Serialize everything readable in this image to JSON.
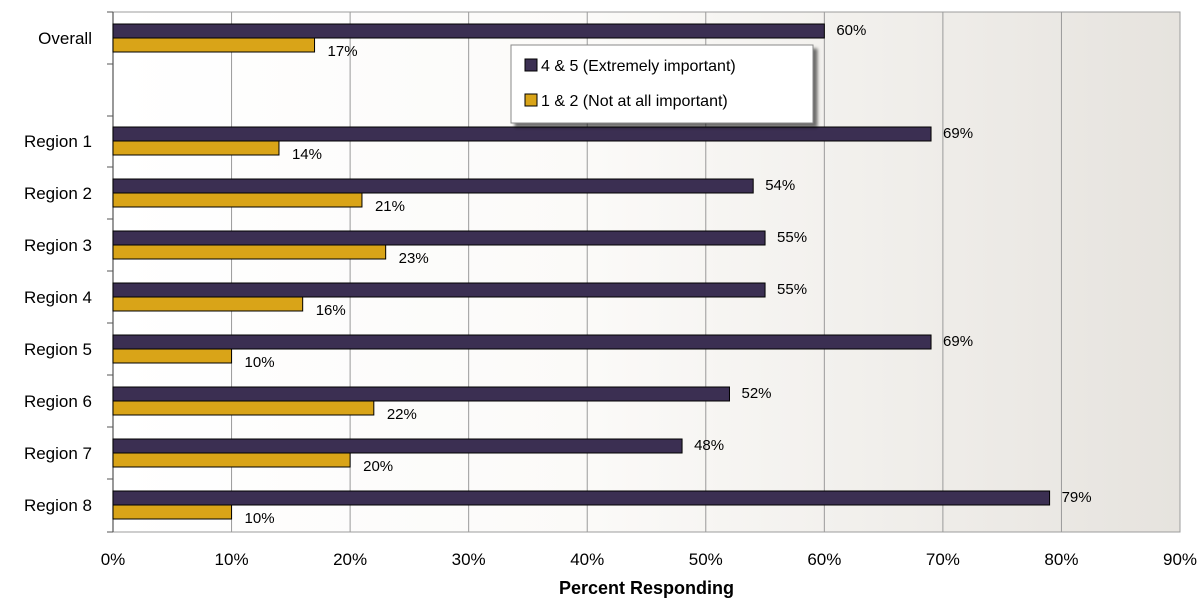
{
  "chart_data": {
    "type": "bar",
    "orientation": "horizontal",
    "title": "",
    "xlabel": "Percent Responding",
    "ylabel": "",
    "xlim": [
      0,
      90
    ],
    "x_ticks": [
      "0%",
      "10%",
      "20%",
      "30%",
      "40%",
      "50%",
      "60%",
      "70%",
      "80%",
      "90%"
    ],
    "grid": "vertical",
    "legend_position": "top-center",
    "categories": [
      "Overall",
      "Region 1",
      "Region 2",
      "Region 3",
      "Region 4",
      "Region 5",
      "Region 6",
      "Region 7",
      "Region 8"
    ],
    "series": [
      {
        "name": "4 & 5 (Extremely important)",
        "color": "#3b2f52",
        "values": [
          60,
          69,
          54,
          55,
          55,
          69,
          52,
          48,
          79
        ],
        "labels": [
          "60%",
          "69%",
          "54%",
          "55%",
          "55%",
          "69%",
          "52%",
          "48%",
          "79%"
        ]
      },
      {
        "name": "1 & 2 (Not at all important)",
        "color": "#d9a418",
        "values": [
          17,
          14,
          21,
          23,
          16,
          10,
          22,
          20,
          10
        ],
        "labels": [
          "17%",
          "14%",
          "21%",
          "23%",
          "16%",
          "10%",
          "22%",
          "20%",
          "10%"
        ]
      }
    ]
  }
}
